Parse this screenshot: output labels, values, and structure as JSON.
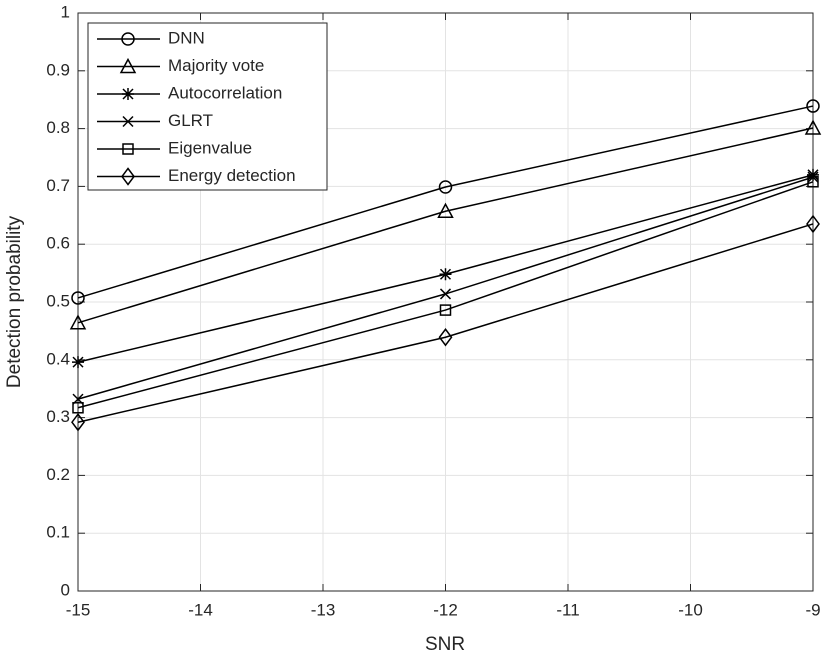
{
  "chart_data": {
    "type": "line",
    "xlabel": "SNR",
    "ylabel": "Detection probability",
    "x": [
      -15,
      -12,
      -9
    ],
    "series": [
      {
        "name": "DNN",
        "color": "#000000",
        "marker": "circle",
        "values": [
          0.507,
          0.699,
          0.839
        ]
      },
      {
        "name": "Majority vote",
        "color": "#000000",
        "marker": "triangle",
        "values": [
          0.464,
          0.657,
          0.801
        ]
      },
      {
        "name": "Autocorrelation",
        "color": "#000000",
        "marker": "asterisk",
        "values": [
          0.396,
          0.548,
          0.72
        ]
      },
      {
        "name": "GLRT",
        "color": "#000000",
        "marker": "x",
        "values": [
          0.332,
          0.514,
          0.716
        ]
      },
      {
        "name": "Eigenvalue",
        "color": "#000000",
        "marker": "square",
        "values": [
          0.317,
          0.486,
          0.708
        ]
      },
      {
        "name": "Energy detection",
        "color": "#000000",
        "marker": "diamond",
        "values": [
          0.292,
          0.439,
          0.635
        ]
      }
    ],
    "xlim": [
      -15,
      -9
    ],
    "xticks": [
      -15,
      -14,
      -13,
      -12,
      -11,
      -10,
      -9
    ],
    "ylim": [
      0,
      1
    ],
    "yticks": [
      0,
      0.1,
      0.2,
      0.3,
      0.4,
      0.5,
      0.6,
      0.7,
      0.8,
      0.9,
      1
    ],
    "grid": true,
    "legend": "top-left"
  }
}
